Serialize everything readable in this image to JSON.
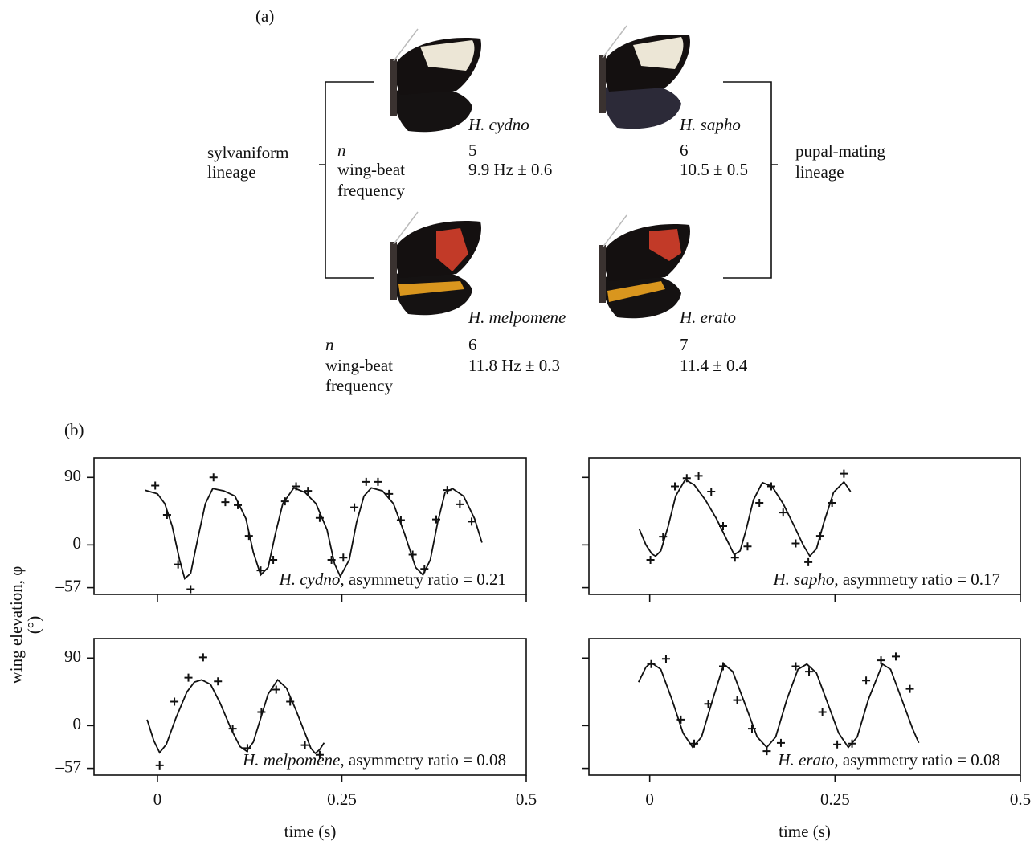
{
  "panel_a": {
    "label": "(a)",
    "left_lineage": [
      "sylvaniform",
      "lineage"
    ],
    "right_lineage": [
      "pupal-mating",
      "lineage"
    ],
    "top": {
      "n_label": "n",
      "freq_label": [
        "wing-beat",
        "frequency"
      ],
      "species": [
        "H. cydno",
        "H. sapho"
      ],
      "n": [
        "5",
        "6"
      ],
      "freq": [
        "9.9 Hz ± 0.6",
        "10.5 ± 0.5"
      ]
    },
    "bottom": {
      "n_label": "n",
      "freq_label": [
        "wing-beat",
        "frequency"
      ],
      "species": [
        "H. melpomene",
        "H. erato"
      ],
      "n": [
        "6",
        "7"
      ],
      "freq": [
        "11.8 Hz ± 0.3",
        "11.4 ± 0.4"
      ]
    }
  },
  "panel_b": {
    "label": "(b)",
    "y_label": "wing elevation, φ",
    "y_unit": "(°)"
  },
  "chart_data": [
    {
      "type": "scatter",
      "species": "H. cydno",
      "annotation": ", asymmetry ratio = 0.21",
      "xlim": [
        -0.086,
        0.5
      ],
      "ylim": [
        -66,
        116
      ],
      "xticks": [
        0,
        0.25,
        0.5
      ],
      "yticks": [
        90,
        0,
        {
          "value": -57,
          "label": "–57"
        }
      ],
      "xtick_labels": false,
      "ytick_labels": true,
      "color": "#111",
      "points": {
        "x": [
          -0.003,
          0.013,
          0.028,
          0.045,
          0.076,
          0.092,
          0.109,
          0.124,
          0.14,
          0.157,
          0.173,
          0.188,
          0.204,
          0.22,
          0.236,
          0.252,
          0.267,
          0.283,
          0.299,
          0.314,
          0.33,
          0.346,
          0.362,
          0.378,
          0.393,
          0.41,
          0.426
        ],
        "y": [
          79,
          40,
          -26,
          -59,
          90,
          57,
          53,
          12,
          -34,
          -20,
          58,
          78,
          72,
          36,
          -20,
          -17,
          50,
          84,
          84,
          68,
          33,
          -13,
          -32,
          34,
          73,
          54,
          31
        ]
      },
      "curve": {
        "x": [
          -0.017,
          0.0,
          0.01,
          0.02,
          0.03,
          0.037,
          0.045,
          0.055,
          0.065,
          0.075,
          0.09,
          0.105,
          0.12,
          0.13,
          0.14,
          0.15,
          0.16,
          0.17,
          0.185,
          0.2,
          0.215,
          0.23,
          0.24,
          0.248,
          0.26,
          0.27,
          0.28,
          0.29,
          0.305,
          0.32,
          0.335,
          0.35,
          0.36,
          0.37,
          0.38,
          0.39,
          0.4,
          0.415,
          0.43,
          0.44
        ],
        "y": [
          73,
          68,
          55,
          25,
          -20,
          -45,
          -38,
          10,
          55,
          75,
          72,
          65,
          35,
          -10,
          -40,
          -30,
          15,
          55,
          76,
          70,
          55,
          20,
          -25,
          -42,
          -20,
          30,
          65,
          76,
          72,
          55,
          15,
          -30,
          -40,
          -20,
          30,
          70,
          75,
          65,
          35,
          3
        ]
      }
    },
    {
      "type": "scatter",
      "species": "H. sapho",
      "annotation": ", asymmetry ratio = 0.17",
      "xlim": [
        -0.082,
        0.5
      ],
      "ylim": [
        -66,
        116
      ],
      "xticks": [
        0,
        0.25,
        0.5
      ],
      "yticks": [
        90,
        0,
        -57
      ],
      "xtick_labels": false,
      "ytick_labels": false,
      "color": "#111",
      "points": {
        "x": [
          0.001,
          0.018,
          0.034,
          0.05,
          0.066,
          0.083,
          0.099,
          0.115,
          0.132,
          0.148,
          0.164,
          0.18,
          0.197,
          0.214,
          0.23,
          0.246,
          0.262
        ],
        "y": [
          -20,
          11,
          78,
          89,
          92,
          71,
          25,
          -17,
          -2,
          56,
          78,
          43,
          2,
          -23,
          12,
          56,
          95
        ]
      },
      "curve": {
        "x": [
          -0.014,
          -0.005,
          0.003,
          0.008,
          0.015,
          0.025,
          0.035,
          0.048,
          0.06,
          0.075,
          0.09,
          0.105,
          0.114,
          0.122,
          0.13,
          0.14,
          0.152,
          0.165,
          0.18,
          0.195,
          0.207,
          0.216,
          0.225,
          0.235,
          0.248,
          0.262,
          0.271
        ],
        "y": [
          21,
          0,
          -12,
          -15,
          -8,
          25,
          65,
          87,
          80,
          60,
          35,
          5,
          -13,
          -8,
          20,
          60,
          83,
          78,
          55,
          25,
          0,
          -15,
          -5,
          30,
          70,
          84,
          71
        ]
      }
    },
    {
      "type": "scatter",
      "species": "H. melpomene",
      "annotation": ", asymmetry ratio = 0.08",
      "x_label": "time (s)",
      "xlim": [
        -0.086,
        0.5
      ],
      "ylim": [
        -66,
        116
      ],
      "xticks": [
        0,
        0.25,
        0.5
      ],
      "yticks": [
        90,
        0,
        {
          "value": -57,
          "label": "–57"
        }
      ],
      "xtick_labels": true,
      "ytick_labels": true,
      "color": "#111",
      "points": {
        "x": [
          0.003,
          0.023,
          0.042,
          0.062,
          0.082,
          0.102,
          0.122,
          0.141,
          0.161,
          0.18,
          0.2,
          0.22
        ],
        "y": [
          -53,
          32,
          64,
          91,
          59,
          -4,
          -30,
          18,
          48,
          32,
          -26,
          -39
        ]
      },
      "curve": {
        "x": [
          -0.014,
          -0.005,
          0.003,
          0.012,
          0.025,
          0.04,
          0.05,
          0.06,
          0.072,
          0.085,
          0.1,
          0.112,
          0.121,
          0.13,
          0.14,
          0.15,
          0.163,
          0.175,
          0.188,
          0.2,
          0.208,
          0.214,
          0.22,
          0.226
        ],
        "y": [
          8,
          -20,
          -36,
          -25,
          10,
          45,
          58,
          61,
          55,
          30,
          -5,
          -28,
          -34,
          -22,
          10,
          42,
          61,
          50,
          20,
          -10,
          -30,
          -37,
          -32,
          -23
        ]
      }
    },
    {
      "type": "scatter",
      "species": "H. erato",
      "annotation": ", asymmetry ratio = 0.08",
      "x_label": "time (s)",
      "xlim": [
        -0.082,
        0.5
      ],
      "ylim": [
        -66,
        116
      ],
      "xticks": [
        0,
        0.25,
        0.5
      ],
      "yticks": [
        90,
        0,
        -57
      ],
      "xtick_labels": true,
      "ytick_labels": false,
      "color": "#111",
      "points": {
        "x": [
          0.002,
          0.022,
          0.042,
          0.06,
          0.079,
          0.099,
          0.118,
          0.138,
          0.158,
          0.177,
          0.197,
          0.215,
          0.233,
          0.253,
          0.273,
          0.292,
          0.312,
          0.332,
          0.351
        ],
        "y": [
          82,
          89,
          8,
          -24,
          29,
          79,
          34,
          -4,
          -34,
          -23,
          79,
          72,
          18,
          -25,
          -24,
          60,
          87,
          92,
          49
        ]
      },
      "curve": {
        "x": [
          -0.015,
          -0.005,
          0.002,
          0.015,
          0.03,
          0.045,
          0.058,
          0.07,
          0.085,
          0.1,
          0.112,
          0.13,
          0.145,
          0.158,
          0.17,
          0.185,
          0.2,
          0.212,
          0.225,
          0.24,
          0.255,
          0.268,
          0.28,
          0.295,
          0.314,
          0.325,
          0.34,
          0.355,
          0.363
        ],
        "y": [
          58,
          78,
          84,
          75,
          35,
          -10,
          -29,
          -15,
          35,
          82,
          72,
          25,
          -15,
          -29,
          -15,
          35,
          75,
          82,
          70,
          30,
          -10,
          -29,
          -15,
          35,
          82,
          75,
          35,
          -5,
          -23
        ]
      }
    }
  ]
}
